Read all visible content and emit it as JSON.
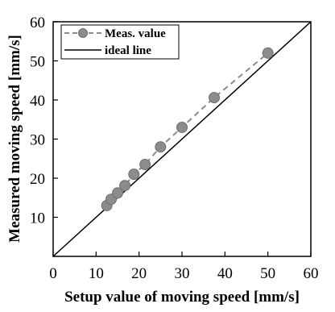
{
  "chart_data": {
    "type": "scatter",
    "title": "",
    "xlabel": "Setup value of moving speed [mm/s]",
    "ylabel": "Measured moving speed [mm/s]",
    "xlim": [
      0,
      60
    ],
    "ylim": [
      0,
      60
    ],
    "xticks": [
      0,
      10,
      20,
      30,
      40,
      50,
      60
    ],
    "yticks": [
      10,
      20,
      30,
      40,
      50,
      60
    ],
    "grid": false,
    "legend_position": "top-left",
    "series": [
      {
        "name": "Meas. value",
        "style": "dashed-line-with-circle-markers",
        "color": "#8c8c8c",
        "x": [
          12.5,
          13.5,
          15.0,
          16.7,
          18.8,
          21.4,
          25.0,
          30.0,
          37.5,
          50.0
        ],
        "y": [
          13.0,
          14.6,
          16.2,
          18.1,
          21.0,
          23.5,
          28.0,
          33.0,
          40.6,
          52.0
        ]
      },
      {
        "name": "ideal line",
        "style": "solid-line",
        "color": "#000000",
        "x": [
          0,
          60
        ],
        "y": [
          0,
          60
        ]
      }
    ]
  }
}
